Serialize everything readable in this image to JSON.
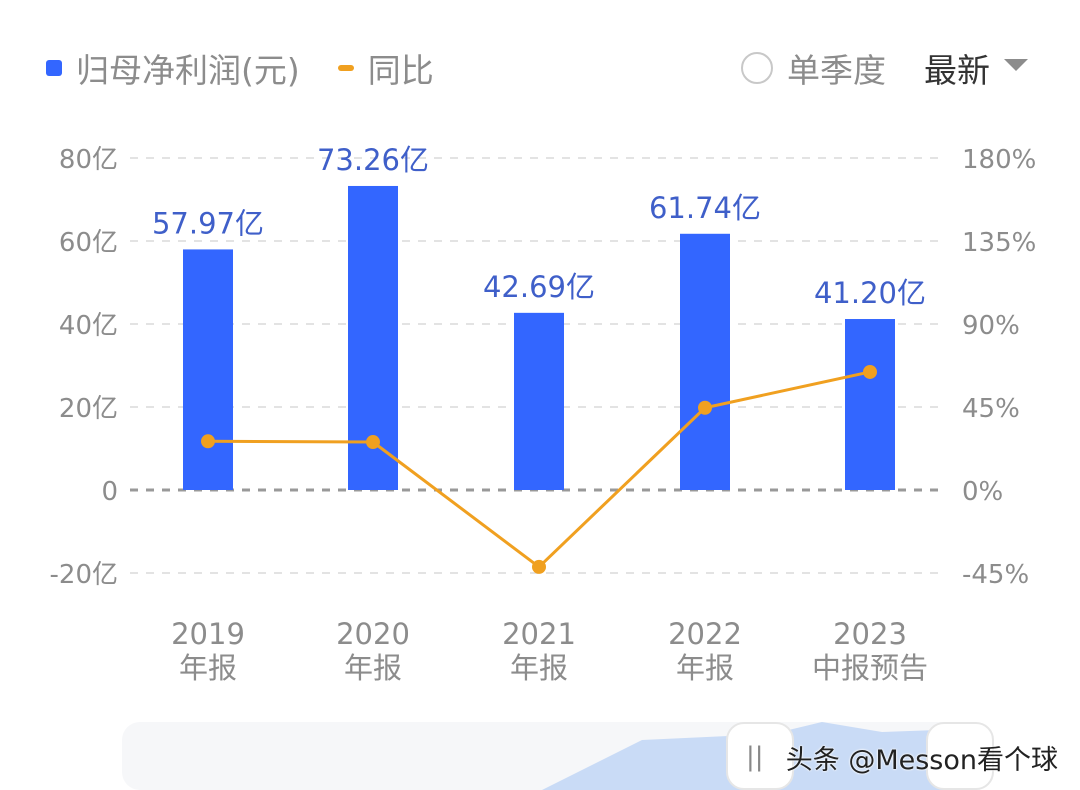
{
  "legend": {
    "bar_label": "归母净利润(元)",
    "line_label": "同比"
  },
  "controls": {
    "quarter_toggle_label": "单季度",
    "sort_label": "最新"
  },
  "colors": {
    "bar": "#3366ff",
    "line": "#f0a020",
    "value_label": "#3f5fc9",
    "axis_text": "#8c8c8c"
  },
  "watermark": "头条 @Messon看个球",
  "chart_data": {
    "type": "bar",
    "title": "",
    "categories": [
      "2019\n年报",
      "2020\n年报",
      "2021\n年报",
      "2022\n年报",
      "2023\n中报预告"
    ],
    "category_lines": [
      [
        "2019",
        "年报"
      ],
      [
        "2020",
        "年报"
      ],
      [
        "2021",
        "年报"
      ],
      [
        "2022",
        "年报"
      ],
      [
        "2023",
        "中报预告"
      ]
    ],
    "series": [
      {
        "name": "归母净利润(元)",
        "type": "bar",
        "axis": "left",
        "values": [
          57.97,
          73.26,
          42.69,
          61.74,
          41.2
        ],
        "labels": [
          "57.97亿",
          "73.26亿",
          "42.69亿",
          "61.74亿",
          "41.20亿"
        ],
        "unit": "亿"
      },
      {
        "name": "同比",
        "type": "line",
        "axis": "right",
        "values": [
          26.4,
          26.0,
          -41.7,
          44.6,
          64.0
        ],
        "unit": "%"
      }
    ],
    "left_axis": {
      "ticks": [
        "80亿",
        "60亿",
        "40亿",
        "20亿",
        "0",
        "-20亿"
      ],
      "ylim": [
        -20,
        80
      ]
    },
    "right_axis": {
      "ticks": [
        "180%",
        "135%",
        "90%",
        "45%",
        "0%",
        "-45%"
      ],
      "ylim": [
        -45,
        180
      ]
    },
    "xlabel": "",
    "ylabel": "",
    "grid": true,
    "legend_position": "top-left"
  }
}
